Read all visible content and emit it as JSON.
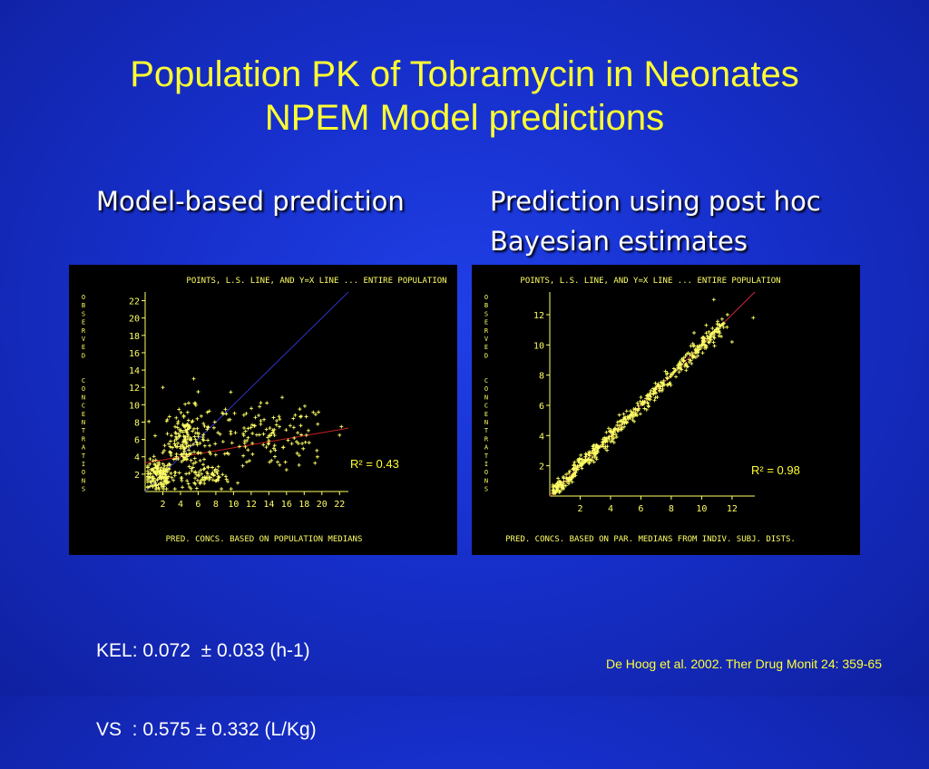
{
  "slide": {
    "title_line1": "Population PK of Tobramycin in Neonates",
    "title_line2": "NPEM Model predictions",
    "left_heading": "Model-based prediction",
    "right_heading_line1": "Prediction using post hoc",
    "right_heading_line2": "Bayesian estimates",
    "stats_line1": "KEL: 0.072  ± 0.033 (h-1)",
    "stats_line2": "VS  : 0.575 ± 0.332 (L/Kg)",
    "citation": "De Hoog et al. 2002. Ther Drug Monit 24: 359-65"
  },
  "colors": {
    "background": "#1a33cc",
    "title": "#ffff33",
    "points": "#ffff66",
    "axis": "#ffff66",
    "identity_line": "#3333cc",
    "regression_line": "#cc2222",
    "plot_background": "#000000"
  },
  "chart_data": [
    {
      "type": "scatter",
      "title": "POINTS, L.S. LINE, AND Y=X LINE ... ENTIRE POPULATION",
      "xlabel": "PRED. CONCS. BASED ON POPULATION MEDIANS",
      "ylabel": "OBSERVED CONCENTRATIONS",
      "xlim": [
        0,
        23
      ],
      "ylim": [
        0,
        23
      ],
      "xticks": [
        2,
        4,
        6,
        8,
        10,
        12,
        14,
        16,
        18,
        20,
        22
      ],
      "yticks": [
        2,
        4,
        6,
        8,
        10,
        12,
        14,
        16,
        18,
        20,
        22
      ],
      "r2_label": "R² = 0.43",
      "r_squared": 0.43,
      "identity_line": [
        [
          0,
          0
        ],
        [
          23,
          23
        ]
      ],
      "ls_line": [
        [
          0,
          3.3
        ],
        [
          23,
          7.3
        ]
      ],
      "point_clusters": [
        {
          "cx": 1.5,
          "cy": 1.8,
          "sx": 0.8,
          "sy": 0.9,
          "n": 140
        },
        {
          "cx": 4.6,
          "cy": 6.0,
          "sx": 1.2,
          "sy": 1.8,
          "n": 170
        },
        {
          "cx": 6.8,
          "cy": 1.6,
          "sx": 1.3,
          "sy": 0.6,
          "n": 60
        },
        {
          "cx": 14.5,
          "cy": 6.2,
          "sx": 3.2,
          "sy": 1.9,
          "n": 110
        },
        {
          "cx": 8.5,
          "cy": 5.5,
          "sx": 2.0,
          "sy": 2.5,
          "n": 40
        }
      ],
      "outliers": [
        [
          2.0,
          12.0
        ],
        [
          5.5,
          13.0
        ],
        [
          6.0,
          11.5
        ],
        [
          22.0,
          6.5
        ],
        [
          19.5,
          4.0
        ],
        [
          16.0,
          2.5
        ],
        [
          17.5,
          9.5
        ]
      ]
    },
    {
      "type": "scatter",
      "title": "POINTS, L.S. LINE, AND Y=X LINE ... ENTIRE POPULATION",
      "xlabel": "PRED. CONCS. BASED ON PAR. MEDIANS FROM INDIV. SUBJ. DISTS.",
      "ylabel": "OBSERVED CONCENTRATIONS",
      "xlim": [
        0,
        13.5
      ],
      "ylim": [
        0,
        13.5
      ],
      "xticks": [
        2,
        4,
        6,
        8,
        10,
        12
      ],
      "yticks": [
        2,
        4,
        6,
        8,
        10,
        12
      ],
      "r2_label": "R² = 0.98",
      "r_squared": 0.98,
      "identity_line": [
        [
          0,
          0
        ],
        [
          13.5,
          13.5
        ]
      ],
      "ls_line": [
        [
          0,
          0
        ],
        [
          13.5,
          13.5
        ]
      ],
      "diagonal_points": {
        "xmin": 0.3,
        "xmax": 11.5,
        "spread": 0.25,
        "n": 520
      },
      "outliers": [
        [
          10.8,
          13.0
        ],
        [
          11.7,
          12.0
        ],
        [
          13.4,
          11.8
        ],
        [
          12.0,
          10.2
        ],
        [
          10.3,
          11.3
        ],
        [
          9.5,
          10.8
        ]
      ]
    }
  ]
}
